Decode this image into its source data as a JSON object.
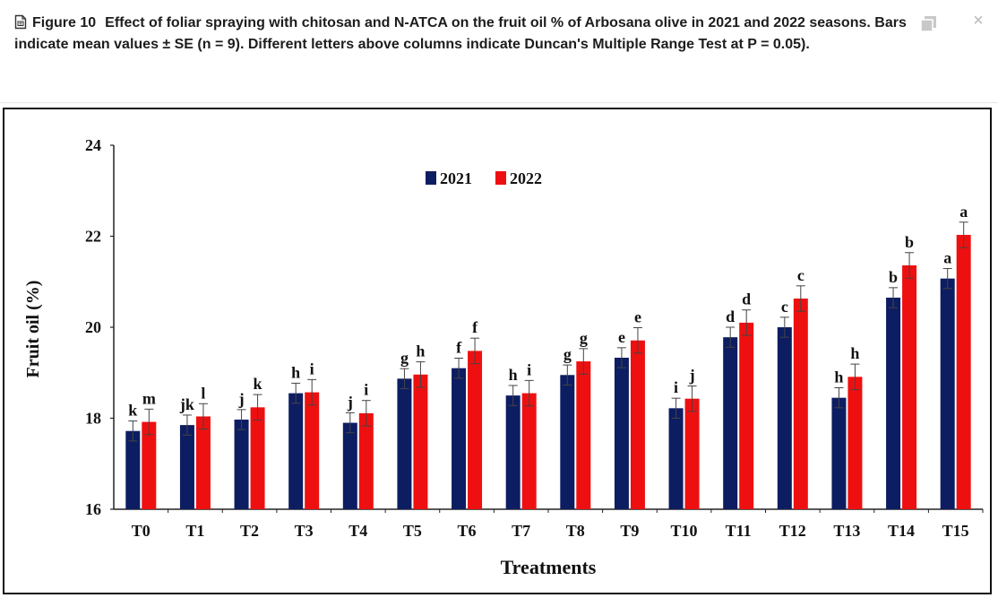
{
  "caption": {
    "figure_label": "Figure 10",
    "text": "Effect of foliar spraying with chitosan and N-ATCA on the fruit oil % of Arbosana olive in 2021 and 2022 seasons. Bars indicate mean values ± SE (n = 9). Different letters above columns indicate Duncan's Multiple Range Test at P = 0.05)."
  },
  "toolbar": {
    "copy_icon": "copy-icon",
    "close_icon": "close-icon",
    "close_label": "×"
  },
  "chart_data": {
    "type": "bar",
    "xlabel": "Treatments",
    "ylabel": "Fruit oil (%)",
    "ylim": [
      16,
      24
    ],
    "yticks": [
      16,
      18,
      20,
      22,
      24
    ],
    "grid": false,
    "legend_position": "top-center",
    "categories": [
      "T0",
      "T1",
      "T2",
      "T3",
      "T4",
      "T5",
      "T6",
      "T7",
      "T8",
      "T9",
      "T10",
      "T11",
      "T12",
      "T13",
      "T14",
      "T15"
    ],
    "series": [
      {
        "name": "2021",
        "color": "#0d1d61",
        "values": [
          17.72,
          17.85,
          17.97,
          18.55,
          17.9,
          18.87,
          19.1,
          18.5,
          18.95,
          19.33,
          18.22,
          19.78,
          20.0,
          18.45,
          20.65,
          21.07
        ],
        "errors": [
          0.22,
          0.22,
          0.22,
          0.22,
          0.22,
          0.22,
          0.22,
          0.22,
          0.22,
          0.22,
          0.22,
          0.22,
          0.22,
          0.22,
          0.22,
          0.22
        ],
        "letters": [
          "k",
          "jk",
          "j",
          "h",
          "j",
          "g",
          "f",
          "h",
          "g",
          "e",
          "i",
          "d",
          "c",
          "h",
          "b",
          "a"
        ]
      },
      {
        "name": "2022",
        "color": "#ee1010",
        "values": [
          17.92,
          18.04,
          18.24,
          18.57,
          18.11,
          18.96,
          19.48,
          18.55,
          19.25,
          19.71,
          18.43,
          20.1,
          20.63,
          18.91,
          21.36,
          22.03
        ],
        "errors": [
          0.28,
          0.28,
          0.28,
          0.28,
          0.28,
          0.28,
          0.28,
          0.28,
          0.28,
          0.28,
          0.28,
          0.28,
          0.28,
          0.28,
          0.28,
          0.28
        ],
        "letters": [
          "m",
          "l",
          "k",
          "i",
          "i",
          "h",
          "f",
          "i",
          "g",
          "e",
          "j",
          "d",
          "c",
          "h",
          "b",
          "a"
        ]
      }
    ]
  }
}
